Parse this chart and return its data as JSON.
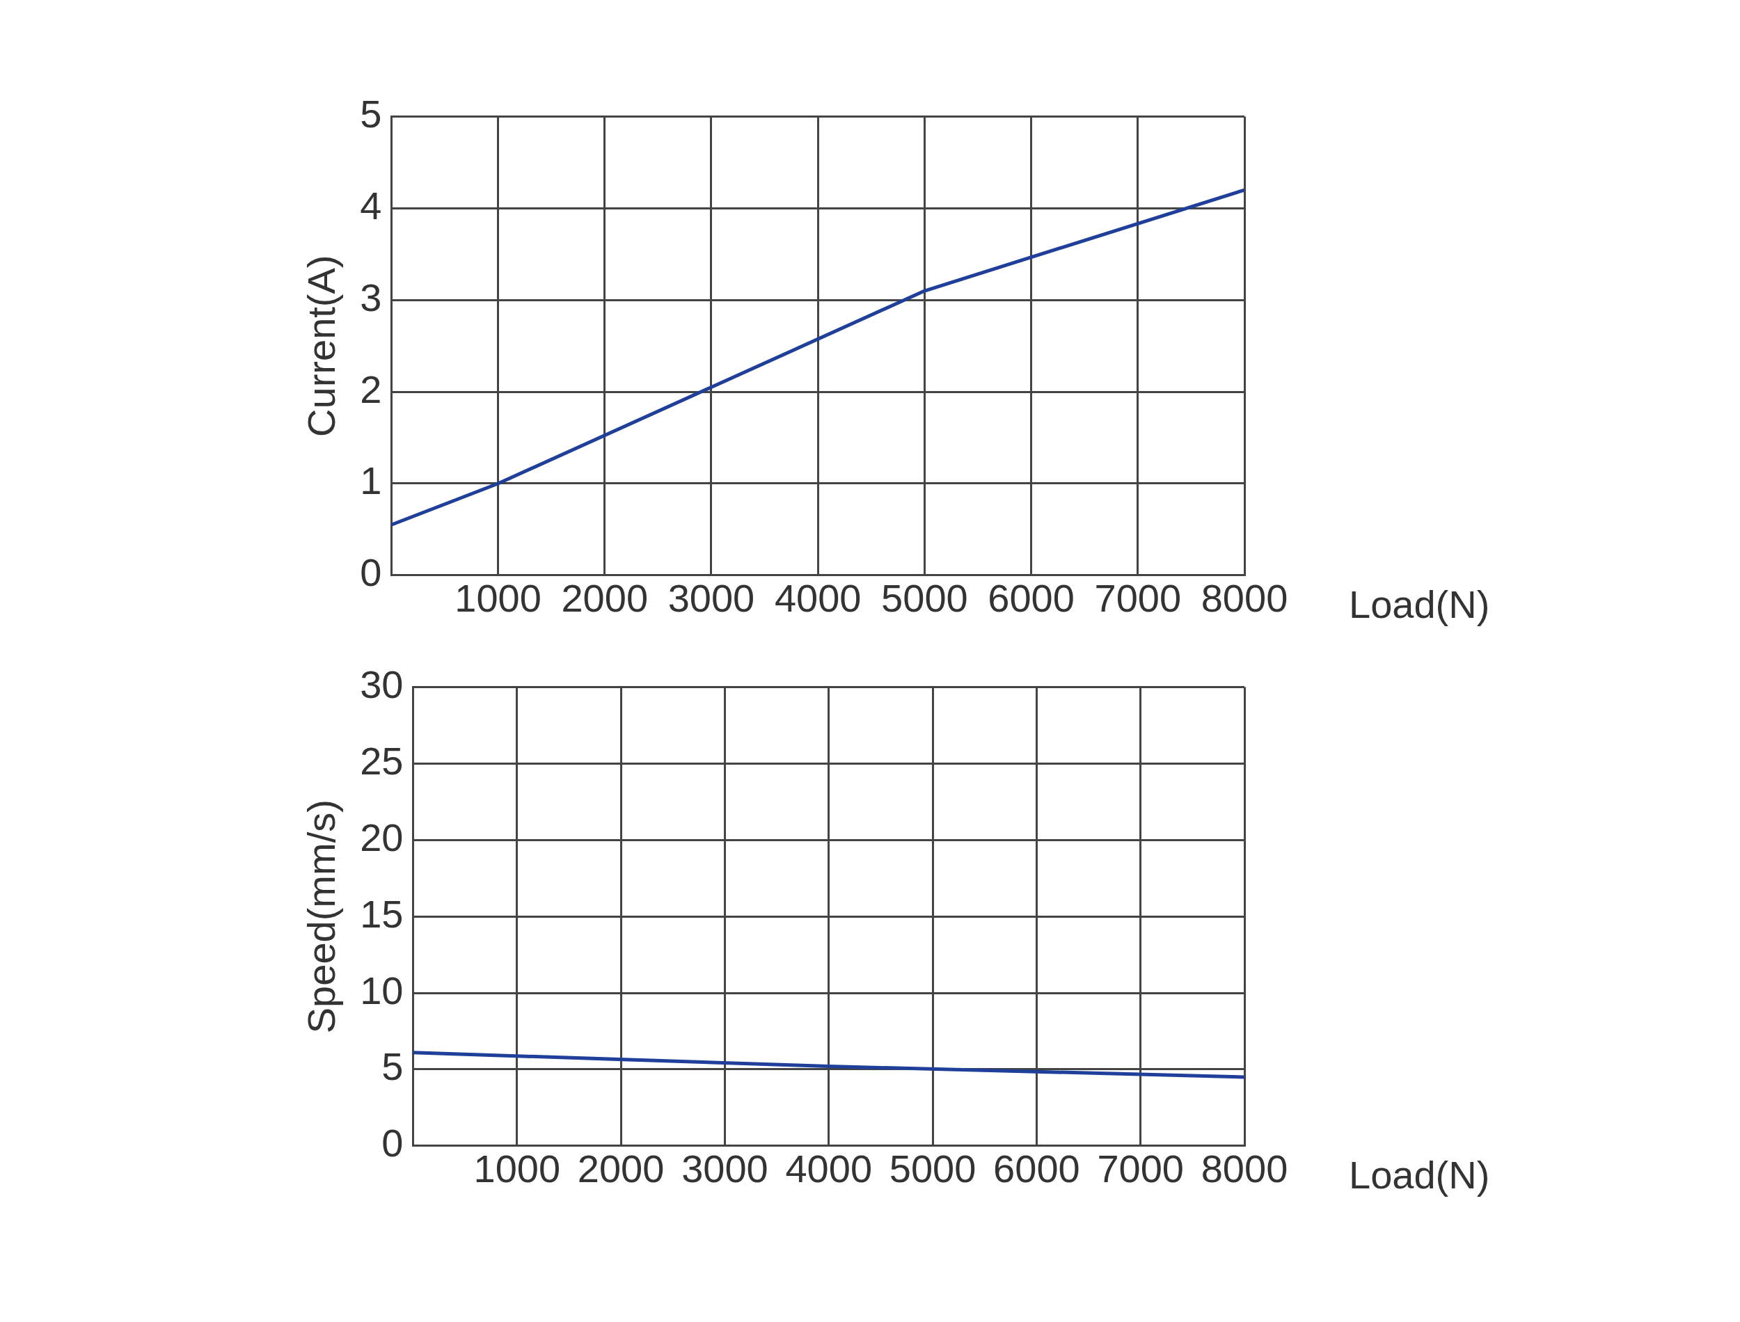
{
  "chart_data": [
    {
      "type": "line",
      "xlabel": "Load(N)",
      "ylabel": "Current(A)",
      "series": [
        {
          "color": "#1f3f9a",
          "x": [
            0,
            1000,
            3000,
            5000,
            8000
          ],
          "values": [
            0.55,
            1.0,
            2.05,
            3.1,
            4.2
          ]
        }
      ],
      "xlim": [
        0,
        8000
      ],
      "xticks": [
        {
          "value": 0,
          "label": null
        },
        1000,
        2000,
        3000,
        4000,
        5000,
        6000,
        7000,
        8000
      ],
      "ylim": [
        0,
        5
      ],
      "yticks": [
        0,
        1,
        2,
        3,
        4,
        5
      ],
      "grid": true,
      "legend": false,
      "marker": "none",
      "line_style": "solid"
    },
    {
      "type": "line",
      "xlabel": "Load(N)",
      "ylabel": "Speed(mm/s)",
      "series": [
        {
          "color": "#1f3f9a",
          "x": [
            0,
            4000,
            8000
          ],
          "values": [
            6.1,
            5.2,
            4.5
          ]
        }
      ],
      "xlim": [
        0,
        8000
      ],
      "xticks": [
        {
          "value": 0,
          "label": null
        },
        1000,
        2000,
        3000,
        4000,
        5000,
        6000,
        7000,
        8000
      ],
      "ylim": [
        0,
        30
      ],
      "yticks": [
        0,
        5,
        10,
        15,
        20,
        25,
        30
      ],
      "grid": true,
      "legend": false,
      "marker": "none",
      "line_style": "solid"
    }
  ]
}
